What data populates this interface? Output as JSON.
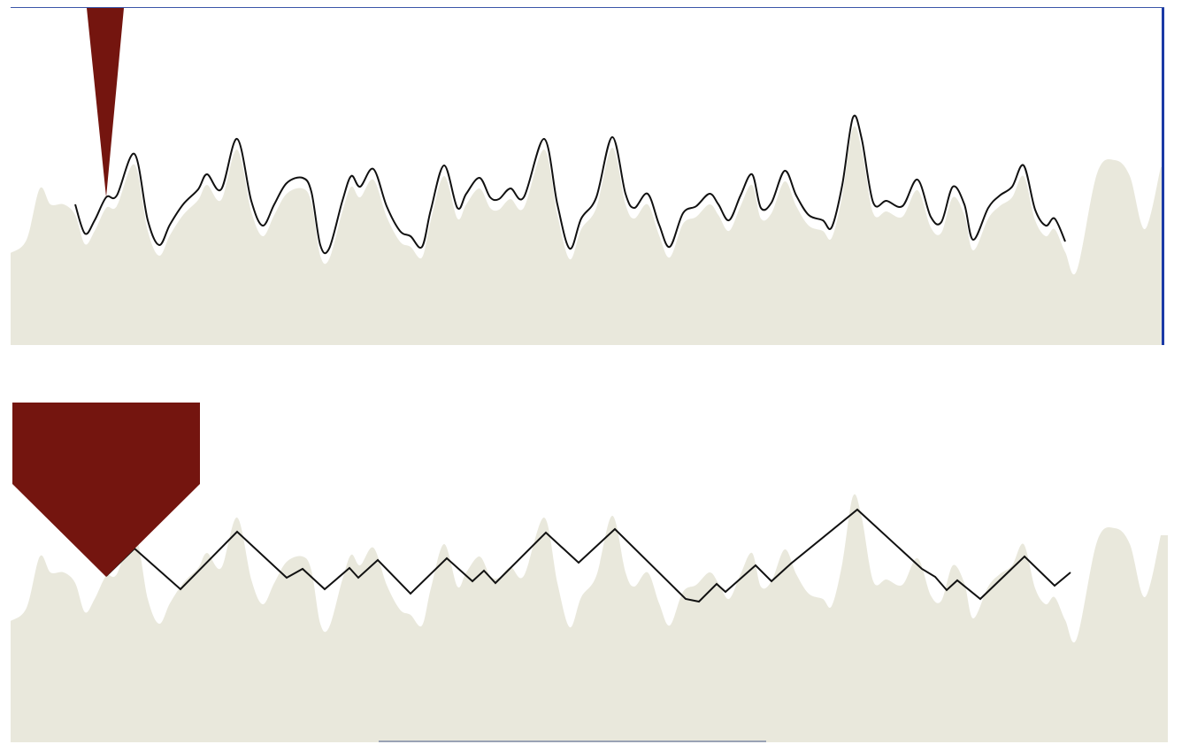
{
  "colors": {
    "background": "#ffffff",
    "terrain_fill": "#e9e8dc",
    "tool_color": "#74150f",
    "path_stroke": "#111111",
    "border": "#1b3aa6"
  },
  "panels": [
    {
      "name": "smooth-profile-panel",
      "tool_icon": "narrow-cone-tool-icon",
      "path_style": "smooth"
    },
    {
      "name": "faceted-profile-panel",
      "tool_icon": "pentagon-tool-icon",
      "path_style": "zigzag"
    }
  ]
}
